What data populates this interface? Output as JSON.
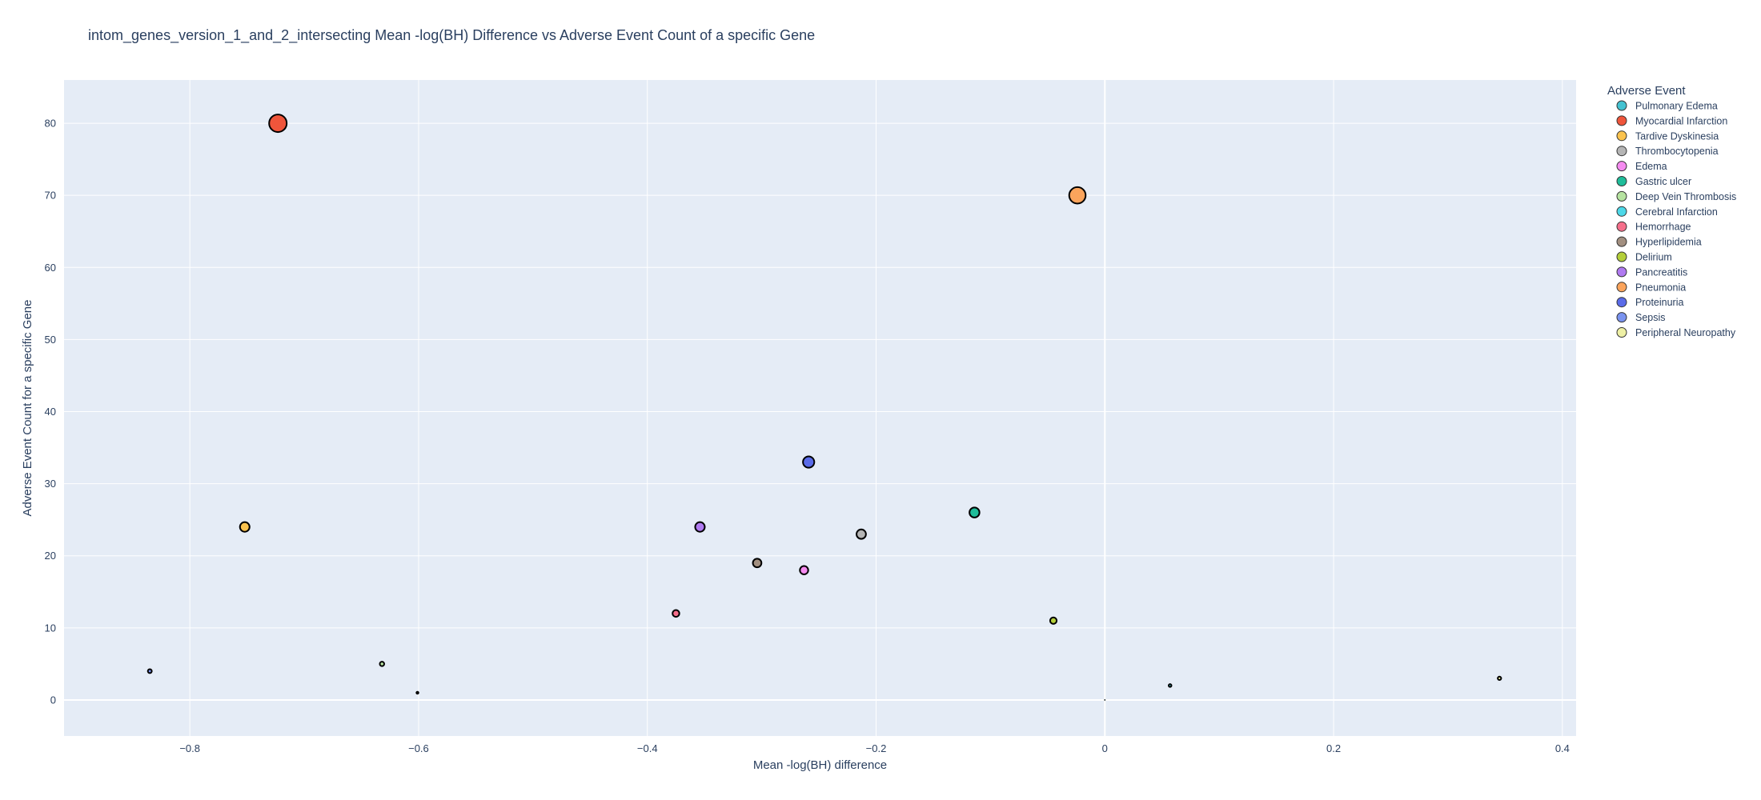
{
  "chart_data": {
    "type": "scatter",
    "title": "intom_genes_version_1_and_2_intersecting Mean -log(BH) Difference vs Adverse Event Count of a specific Gene",
    "xlabel": "Mean -log(BH) difference",
    "ylabel": "Adverse Event Count for a specific Gene",
    "xlim": [
      -0.91,
      0.412
    ],
    "ylim": [
      -5,
      86
    ],
    "x_ticks": [
      -0.8,
      -0.6,
      -0.4,
      -0.2,
      0,
      0.2,
      0.4
    ],
    "x_tick_labels": [
      "−0.8",
      "−0.6",
      "−0.4",
      "−0.2",
      "0",
      "0.2",
      "0.4"
    ],
    "y_ticks": [
      0,
      10,
      20,
      30,
      40,
      50,
      60,
      70,
      80
    ],
    "y_tick_labels": [
      "0",
      "10",
      "20",
      "30",
      "40",
      "50",
      "60",
      "70",
      "80"
    ],
    "grid": true,
    "legend_title": "Adverse Event",
    "legend_position": "right",
    "series": [
      {
        "name": "Pulmonary Edema",
        "color": "#44c2d1",
        "points": [
          [
            0.0,
            0
          ]
        ]
      },
      {
        "name": "Myocardial Infarction",
        "color": "#ef553b",
        "points": [
          [
            -0.723,
            80
          ]
        ]
      },
      {
        "name": "Tardive Dyskinesia",
        "color": "#fbc34e",
        "points": [
          [
            -0.752,
            24
          ]
        ]
      },
      {
        "name": "Thrombocytopenia",
        "color": "#b5b5b5",
        "points": [
          [
            -0.213,
            23
          ]
        ]
      },
      {
        "name": "Edema",
        "color": "#f58bf0",
        "points": [
          [
            -0.263,
            18
          ]
        ]
      },
      {
        "name": "Gastric ulcer",
        "color": "#1fbd9a",
        "points": [
          [
            -0.114,
            26
          ]
        ]
      },
      {
        "name": "Deep Vein Thrombosis",
        "color": "#b6e3a0",
        "points": [
          [
            -0.632,
            5
          ]
        ]
      },
      {
        "name": "Cerebral Infarction",
        "color": "#4dd8e8",
        "points": [
          [
            0.057,
            2
          ]
        ]
      },
      {
        "name": "Hemorrhage",
        "color": "#f56f8b",
        "points": [
          [
            -0.375,
            12
          ]
        ]
      },
      {
        "name": "Hyperlipidemia",
        "color": "#a28f80",
        "points": [
          [
            -0.304,
            19
          ]
        ]
      },
      {
        "name": "Delirium",
        "color": "#b4cf3a",
        "points": [
          [
            -0.045,
            11
          ]
        ]
      },
      {
        "name": "Pancreatitis",
        "color": "#b07af0",
        "points": [
          [
            -0.354,
            24
          ]
        ]
      },
      {
        "name": "Pneumonia",
        "color": "#fba45c",
        "points": [
          [
            -0.024,
            70
          ]
        ]
      },
      {
        "name": "Proteinuria",
        "color": "#5a6be8",
        "points": [
          [
            -0.259,
            33
          ]
        ]
      },
      {
        "name": "Sepsis",
        "color": "#7a93ef",
        "points": [
          [
            -0.835,
            4
          ]
        ]
      },
      {
        "name": "Peripheral Neuropathy",
        "color": "#eef0a5",
        "points": [
          [
            -0.601,
            1
          ],
          [
            0.345,
            3
          ]
        ]
      }
    ]
  }
}
